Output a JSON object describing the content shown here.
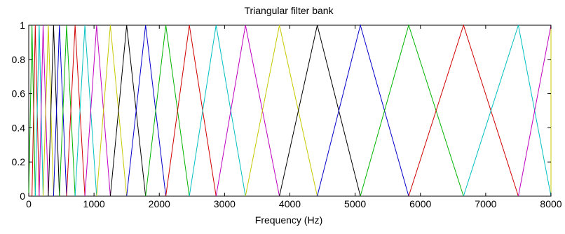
{
  "chart_data": {
    "type": "line",
    "title": "Triangular filter bank",
    "xlabel": "Frequency (Hz)",
    "ylabel": "",
    "xlim": [
      0,
      8000
    ],
    "ylim": [
      0,
      1
    ],
    "x_ticks": [
      "0",
      "1000",
      "2000",
      "3000",
      "4000",
      "5000",
      "6000",
      "7000",
      "8000"
    ],
    "y_ticks": [
      "0",
      "0.2",
      "0.4",
      "0.6",
      "0.8",
      "1"
    ],
    "grid": false,
    "legend": "none",
    "filter_count": 26,
    "filter_edges_hz": [
      0,
      50,
      100,
      160,
      220,
      300,
      380,
      470,
      580,
      710,
      860,
      1040,
      1250,
      1500,
      1790,
      2100,
      2460,
      2870,
      3320,
      3840,
      4420,
      5080,
      5820,
      6660,
      7500,
      8000,
      8000,
      8000
    ],
    "filter_colors": [
      "#00b400",
      "#d00000",
      "#00bfbf",
      "#c000c0",
      "#c8c800",
      "#000000",
      "#0000cc"
    ],
    "colors": {
      "background": "#ffffff",
      "axes": "#000000"
    }
  }
}
